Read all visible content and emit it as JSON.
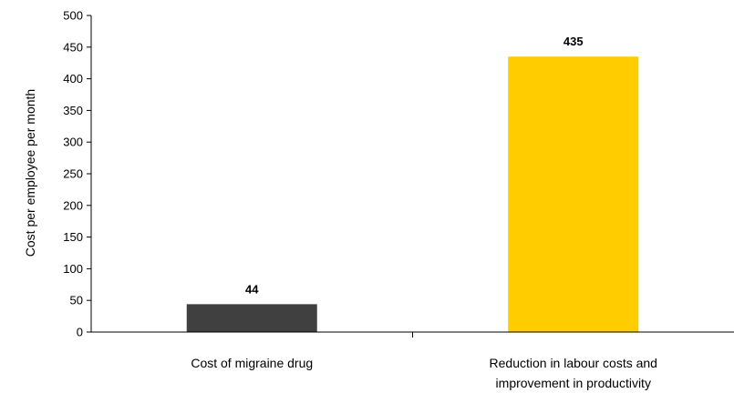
{
  "chart_data": {
    "type": "bar",
    "ylabel": "Cost per employee per month",
    "ylim": [
      0,
      500
    ],
    "ytick_step": 50,
    "yticks": [
      "0",
      "50",
      "100",
      "150",
      "200",
      "250",
      "300",
      "350",
      "400",
      "450",
      "500"
    ],
    "categories": [
      [
        "Cost of migraine drug"
      ],
      [
        "Reduction in labour costs and",
        "improvement in productivity"
      ]
    ],
    "values": [
      44,
      435
    ],
    "data_labels": [
      "44",
      "435"
    ],
    "colors": [
      "#404040",
      "#ffcc00"
    ],
    "grid": false,
    "legend": "none"
  }
}
